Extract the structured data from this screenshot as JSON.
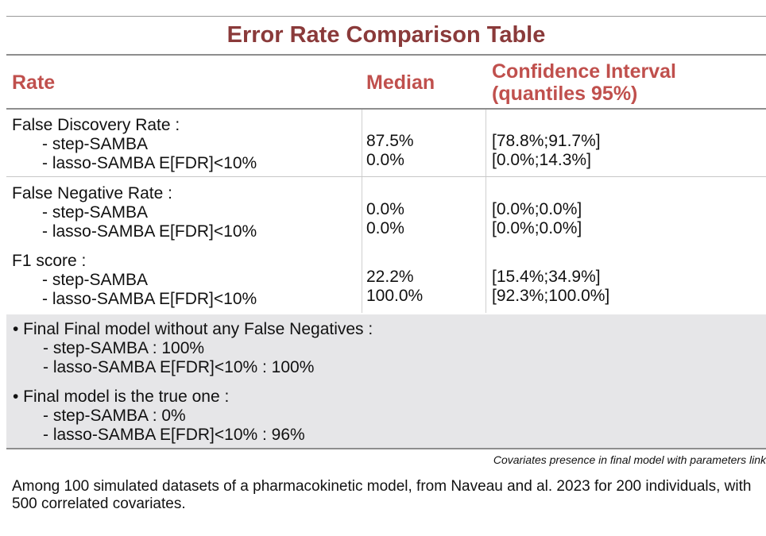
{
  "table": {
    "title": "Error Rate Comparison Table",
    "headers": {
      "rate": "Rate",
      "median": "Median",
      "ci_line1": "Confidence Interval",
      "ci_line2": "(quantiles 95%)"
    },
    "rows": [
      {
        "label": "False Discovery Rate :",
        "methods": [
          "- step-SAMBA",
          "- lasso-SAMBA E[FDR]<10%"
        ],
        "medians": [
          "87.5%",
          "0.0%"
        ],
        "intervals": [
          "[78.8%;91.7%]",
          "[0.0%;14.3%]"
        ]
      },
      {
        "label": "False Negative Rate :",
        "methods": [
          "- step-SAMBA",
          "- lasso-SAMBA E[FDR]<10%"
        ],
        "medians": [
          "0.0%",
          "0.0%"
        ],
        "intervals": [
          "[0.0%;0.0%]",
          "[0.0%;0.0%]"
        ]
      },
      {
        "label": "F1 score :",
        "methods": [
          "- step-SAMBA",
          "- lasso-SAMBA E[FDR]<10%"
        ],
        "medians": [
          "22.2%",
          "100.0%"
        ],
        "intervals": [
          "[15.4%;34.9%]",
          "[92.3%;100.0%]"
        ]
      }
    ]
  },
  "summary": [
    {
      "heading": "• Final Final model without any False Negatives :",
      "lines": [
        "- step-SAMBA : 100%",
        "- lasso-SAMBA E[FDR]<10% : 100%"
      ]
    },
    {
      "heading": "• Final model is the true one :",
      "lines": [
        "- step-SAMBA : 0%",
        "- lasso-SAMBA E[FDR]<10% : 96%"
      ]
    }
  ],
  "caption": "Covariates presence in final model with parameters link",
  "footnote": "Among 100 simulated datasets of a pharmacokinetic model, from Naveau and al. 2023 for 200 individuals, with 500 correlated covariates.",
  "colors": {
    "title": "#8a3a3a",
    "header": "#c0504d",
    "summary_background": "#e6e6e8"
  }
}
